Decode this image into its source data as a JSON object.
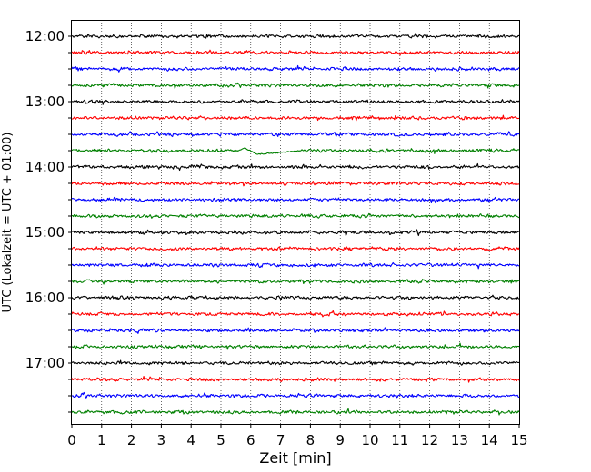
{
  "chart_data": {
    "type": "line",
    "title": "",
    "xlabel": "Zeit  [min]",
    "ylabel": "UTC (Lokalzeit = UTC + 01:00)",
    "xlim": [
      0,
      15
    ],
    "xticks": [
      "0",
      "1",
      "2",
      "3",
      "4",
      "5",
      "6",
      "7",
      "8",
      "9",
      "10",
      "11",
      "12",
      "13",
      "14",
      "15"
    ],
    "y_tick_labels": [
      "12:00",
      "13:00",
      "14:00",
      "15:00",
      "16:00",
      "17:00"
    ],
    "trace_interval_minutes": 15,
    "first_trace_time": "12:00",
    "last_trace_time": "17:45",
    "trace_colors": [
      "#000000",
      "#ff0000",
      "#0000ff",
      "#008000"
    ],
    "grid": "vertical dotted",
    "event": {
      "trace_time": "13:45",
      "start_min": 5.6,
      "end_min": 7.7
    }
  }
}
